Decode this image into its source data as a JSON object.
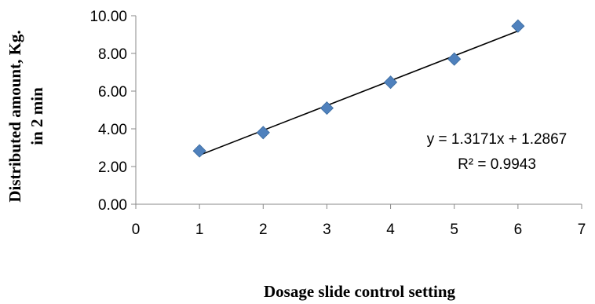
{
  "chart_data": {
    "type": "scatter",
    "x": [
      1,
      2,
      3,
      4,
      5,
      6
    ],
    "y": [
      2.83,
      3.8,
      5.1,
      6.47,
      7.7,
      9.45
    ],
    "xlabel": "Dosage slide control setting",
    "ylabel_lines": [
      "Distributed amount, Kg.",
      "in 2 min"
    ],
    "xlim": [
      0,
      7
    ],
    "ylim": [
      0,
      10
    ],
    "x_ticks": [
      "0",
      "1",
      "2",
      "3",
      "4",
      "5",
      "6",
      "7"
    ],
    "y_ticks": [
      "0.00",
      "2.00",
      "4.00",
      "6.00",
      "8.00",
      "10.00"
    ],
    "grid": false,
    "legend": "none",
    "marker": "diamond",
    "marker_color": "#4F81BD",
    "trendline": {
      "type": "linear",
      "slope": 1.3171,
      "intercept": 1.2867,
      "x_range": [
        1,
        6
      ],
      "color": "#000000"
    },
    "annotations": {
      "equation": "y = 1.3171x + 1.2867",
      "r_squared": "R² = 0.9943"
    }
  }
}
